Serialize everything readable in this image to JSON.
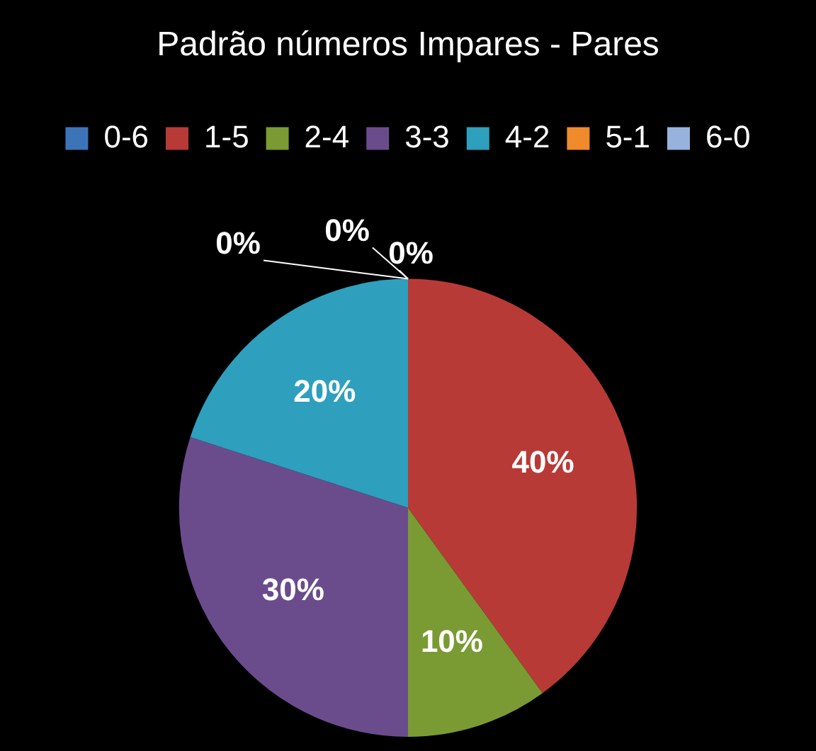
{
  "chart_data": {
    "type": "pie",
    "title": "Padrão números Impares - Pares",
    "categories": [
      "0-6",
      "1-5",
      "2-4",
      "3-3",
      "4-2",
      "5-1",
      "6-0"
    ],
    "values": [
      0,
      40,
      10,
      30,
      20,
      0,
      0
    ],
    "value_labels": [
      "0%",
      "40%",
      "10%",
      "30%",
      "20%",
      "0%",
      "0%"
    ],
    "colors": [
      "#3c74b8",
      "#b83a36",
      "#7a9a33",
      "#6a4c8c",
      "#2e9fbd",
      "#f08a2a",
      "#97b3dd"
    ],
    "legend": "top"
  }
}
